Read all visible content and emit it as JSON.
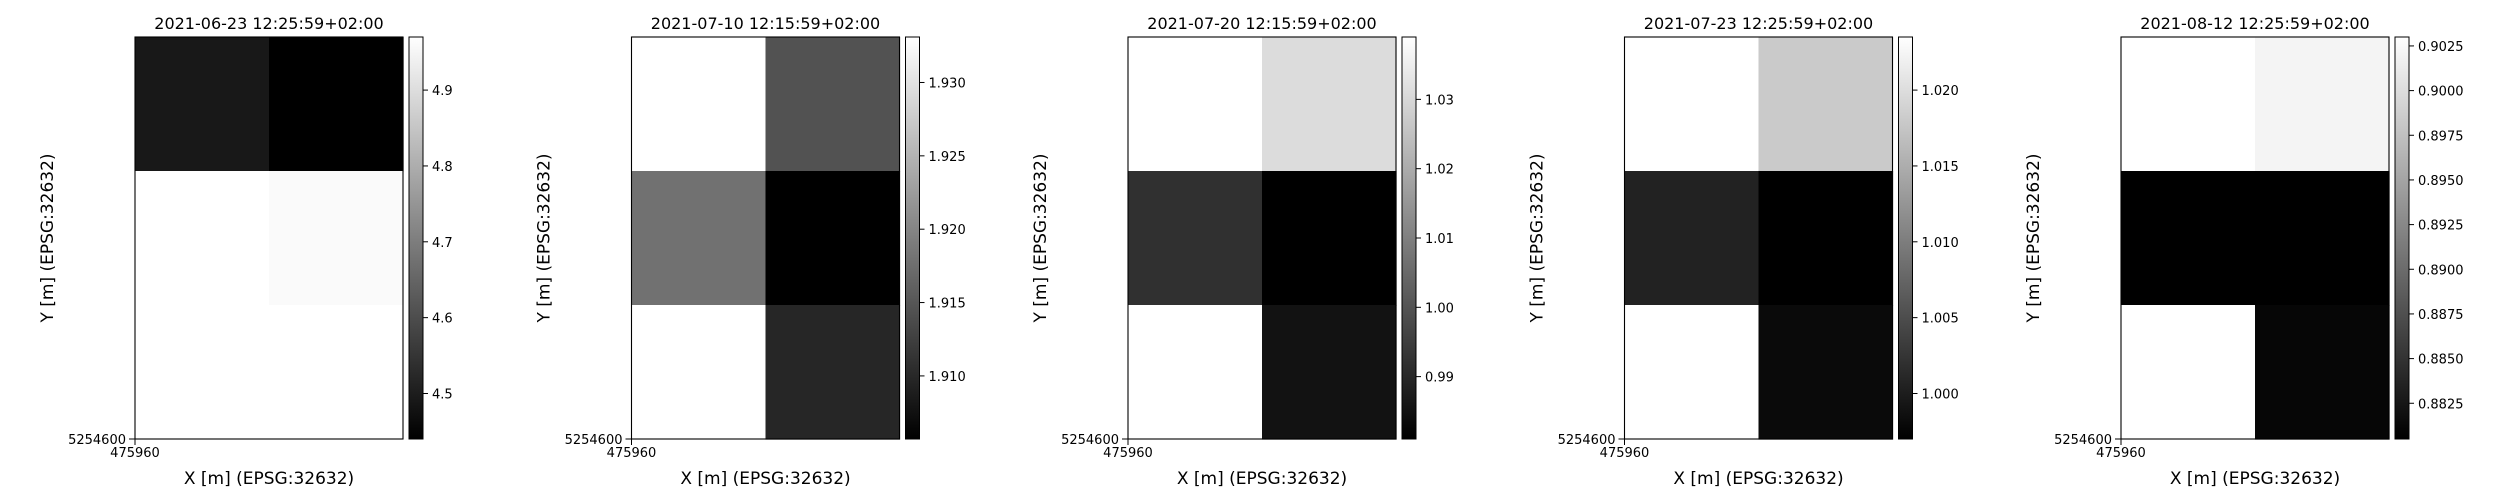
{
  "chart_data": [
    {
      "type": "heatmap",
      "title": "2021-06-23 12:25:59+02:00",
      "xlabel": "X [m] (EPSG:32632)",
      "ylabel": "Y [m] (EPSG:32632)",
      "x_tick_labels": [
        "475960"
      ],
      "y_tick_labels": [
        "5254600"
      ],
      "colormap": "greys_r",
      "vmin": 4.44,
      "vmax": 4.97,
      "colorbar_ticks": [
        4.5,
        4.6,
        4.7,
        4.8,
        4.9
      ],
      "colorbar_tick_labels": [
        "4.5",
        "4.6",
        "4.7",
        "4.8",
        "4.9"
      ],
      "grid": [
        [
          4.49,
          4.44
        ],
        [
          4.97,
          4.96
        ],
        [
          4.97,
          4.97
        ]
      ]
    },
    {
      "type": "heatmap",
      "title": "2021-07-10 12:15:59+02:00",
      "xlabel": "X [m] (EPSG:32632)",
      "ylabel": "Y [m] (EPSG:32632)",
      "x_tick_labels": [
        "475960"
      ],
      "y_tick_labels": [
        "5254600"
      ],
      "colormap": "greys_r",
      "vmin": 1.9057,
      "vmax": 1.9331,
      "colorbar_ticks": [
        1.91,
        1.915,
        1.92,
        1.925,
        1.93
      ],
      "colorbar_tick_labels": [
        "1.910",
        "1.915",
        "1.920",
        "1.925",
        "1.930"
      ],
      "grid": [
        [
          1.9331,
          1.9145
        ],
        [
          1.9178,
          1.9057
        ],
        [
          1.9331,
          1.9098
        ]
      ]
    },
    {
      "type": "heatmap",
      "title": "2021-07-20 12:15:59+02:00",
      "xlabel": "X [m] (EPSG:32632)",
      "ylabel": "Y [m] (EPSG:32632)",
      "x_tick_labels": [
        "475960"
      ],
      "y_tick_labels": [
        "5254600"
      ],
      "colormap": "greys_r",
      "vmin": 0.981,
      "vmax": 1.039,
      "colorbar_ticks": [
        0.99,
        1.0,
        1.01,
        1.02,
        1.03
      ],
      "colorbar_tick_labels": [
        "0.99",
        "1.00",
        "1.01",
        "1.02",
        "1.03"
      ],
      "grid": [
        [
          1.039,
          1.031
        ],
        [
          0.992,
          0.981
        ],
        [
          1.039,
          0.985
        ]
      ]
    },
    {
      "type": "heatmap",
      "title": "2021-07-23 12:25:59+02:00",
      "xlabel": "X [m] (EPSG:32632)",
      "ylabel": "Y [m] (EPSG:32632)",
      "x_tick_labels": [
        "475960"
      ],
      "y_tick_labels": [
        "5254600"
      ],
      "colormap": "greys_r",
      "vmin": 0.997,
      "vmax": 1.0235,
      "colorbar_ticks": [
        1.0,
        1.005,
        1.01,
        1.015,
        1.02
      ],
      "colorbar_tick_labels": [
        "1.000",
        "1.005",
        "1.010",
        "1.015",
        "1.020"
      ],
      "grid": [
        [
          1.0235,
          1.018
        ],
        [
          1.0005,
          0.997
        ],
        [
          1.0235,
          0.998
        ]
      ]
    },
    {
      "type": "heatmap",
      "title": "2021-08-12 12:25:59+02:00",
      "xlabel": "X [m] (EPSG:32632)",
      "ylabel": "Y [m] (EPSG:32632)",
      "x_tick_labels": [
        "475960"
      ],
      "y_tick_labels": [
        "5254600"
      ],
      "colormap": "greys_r",
      "vmin": 0.8805,
      "vmax": 0.903,
      "colorbar_ticks": [
        0.8825,
        0.885,
        0.8875,
        0.89,
        0.8925,
        0.895,
        0.8975,
        0.9,
        0.9025
      ],
      "colorbar_tick_labels": [
        "0.8825",
        "0.8850",
        "0.8875",
        "0.8900",
        "0.8925",
        "0.8950",
        "0.8975",
        "0.9000",
        "0.9025"
      ],
      "grid": [
        [
          0.903,
          0.902
        ],
        [
          0.8805,
          0.8805
        ],
        [
          0.903,
          0.881
        ]
      ]
    }
  ]
}
